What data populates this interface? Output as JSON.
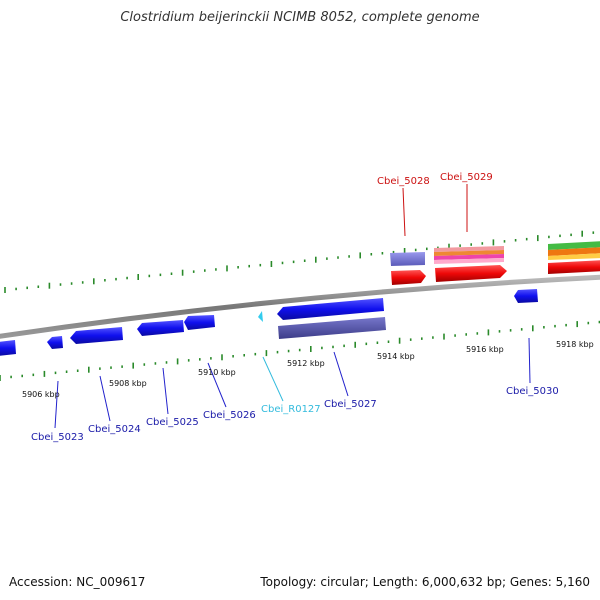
{
  "title": "Clostridium beijerinckii NCIMB 8052, complete genome",
  "footer": {
    "accession": "Accession: NC_009617",
    "info": "Topology: circular; Length: 6,000,632 bp; Genes: 5,160"
  },
  "colors": {
    "forward_gene": "#2222ee",
    "reverse_gene": "#1a1aee",
    "rna": "#33ccee",
    "red": "#ee1111",
    "backbone": "#888888",
    "ticks": "#2a8a2a"
  },
  "scale_labels": [
    "5906 kbp",
    "5908 kbp",
    "5910 kbp",
    "5912 kbp",
    "5914 kbp",
    "5916 kbp",
    "5918 kbp"
  ],
  "gene_labels": [
    {
      "name": "Cbei_5023",
      "color": "#1a1aa8"
    },
    {
      "name": "Cbei_5024",
      "color": "#1a1aa8"
    },
    {
      "name": "Cbei_5025",
      "color": "#1a1aa8"
    },
    {
      "name": "Cbei_5026",
      "color": "#1a1aa8"
    },
    {
      "name": "Cbei_R0127",
      "color": "#33bbdd"
    },
    {
      "name": "Cbei_5027",
      "color": "#1a1aa8"
    },
    {
      "name": "Cbei_5028",
      "color": "#cc1111"
    },
    {
      "name": "Cbei_5029",
      "color": "#cc1111"
    },
    {
      "name": "Cbei_5030",
      "color": "#1a1aa8"
    }
  ]
}
